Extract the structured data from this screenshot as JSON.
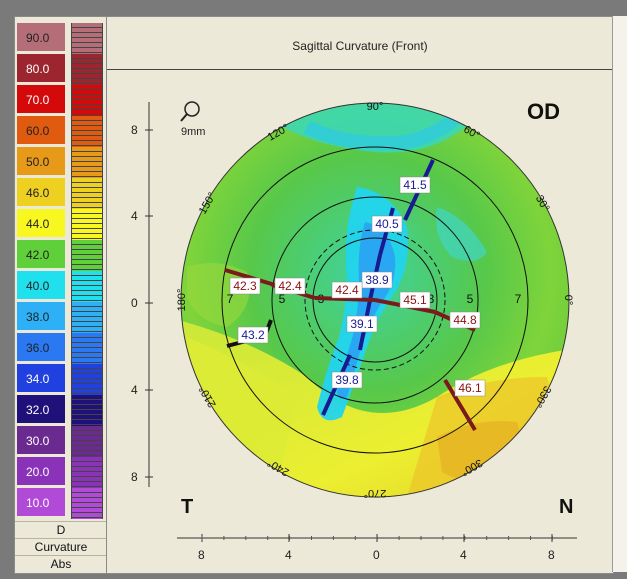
{
  "title": "Sagittal Curvature (Front)",
  "eye": "OD",
  "corner_left": "T",
  "corner_right": "N",
  "zoom_label": "9mm",
  "legend": {
    "unit": "D",
    "label1": "Curvature",
    "label2": "Abs",
    "steps": [
      {
        "v": "90.0",
        "c": "#b56e78",
        "t": "#222"
      },
      {
        "v": "80.0",
        "c": "#9c2530",
        "t": "#fff"
      },
      {
        "v": "70.0",
        "c": "#d40a0a",
        "t": "#fff"
      },
      {
        "v": "60.0",
        "c": "#e05a10",
        "t": "#222"
      },
      {
        "v": "50.0",
        "c": "#e69a18",
        "t": "#222"
      },
      {
        "v": "46.0",
        "c": "#eed020",
        "t": "#222"
      },
      {
        "v": "44.0",
        "c": "#f8f820",
        "t": "#222"
      },
      {
        "v": "42.0",
        "c": "#5fcf3a",
        "t": "#222"
      },
      {
        "v": "40.0",
        "c": "#20e0ee",
        "t": "#222"
      },
      {
        "v": "38.0",
        "c": "#2db0f5",
        "t": "#222"
      },
      {
        "v": "36.0",
        "c": "#2a78f2",
        "t": "#222"
      },
      {
        "v": "34.0",
        "c": "#2040e0",
        "t": "#fff"
      },
      {
        "v": "32.0",
        "c": "#20107a",
        "t": "#fff"
      },
      {
        "v": "30.0",
        "c": "#6a2a90",
        "t": "#fff"
      },
      {
        "v": "20.0",
        "c": "#8a32b8",
        "t": "#fff"
      },
      {
        "v": "10.0",
        "c": "#b24ad8",
        "t": "#fff"
      }
    ]
  },
  "axis": {
    "left_ticks": [
      "8",
      "4",
      "0",
      "4",
      "8"
    ],
    "bottom_ticks": [
      "8",
      "4",
      "0",
      "4",
      "8"
    ]
  },
  "angles": [
    "90°",
    "60°",
    "30°",
    "0°",
    "330°",
    "300°",
    "270°",
    "240°",
    "210°",
    "180°",
    "150°",
    "120°"
  ],
  "ring_labels": [
    "7",
    "5",
    "3",
    "3",
    "5",
    "7"
  ],
  "readings": [
    {
      "v": "41.5",
      "kind": "steep"
    },
    {
      "v": "40.5",
      "kind": "steep"
    },
    {
      "v": "38.9",
      "kind": "steep"
    },
    {
      "v": "39.1",
      "kind": "steep"
    },
    {
      "v": "39.8",
      "kind": "steep"
    },
    {
      "v": "43.2",
      "kind": "steep"
    },
    {
      "v": "42.3",
      "kind": "flat"
    },
    {
      "v": "42.4",
      "kind": "flat"
    },
    {
      "v": "42.4",
      "kind": "flat"
    },
    {
      "v": "45.1",
      "kind": "flat"
    },
    {
      "v": "44.8",
      "kind": "flat"
    },
    {
      "v": "46.1",
      "kind": "flat"
    }
  ]
}
